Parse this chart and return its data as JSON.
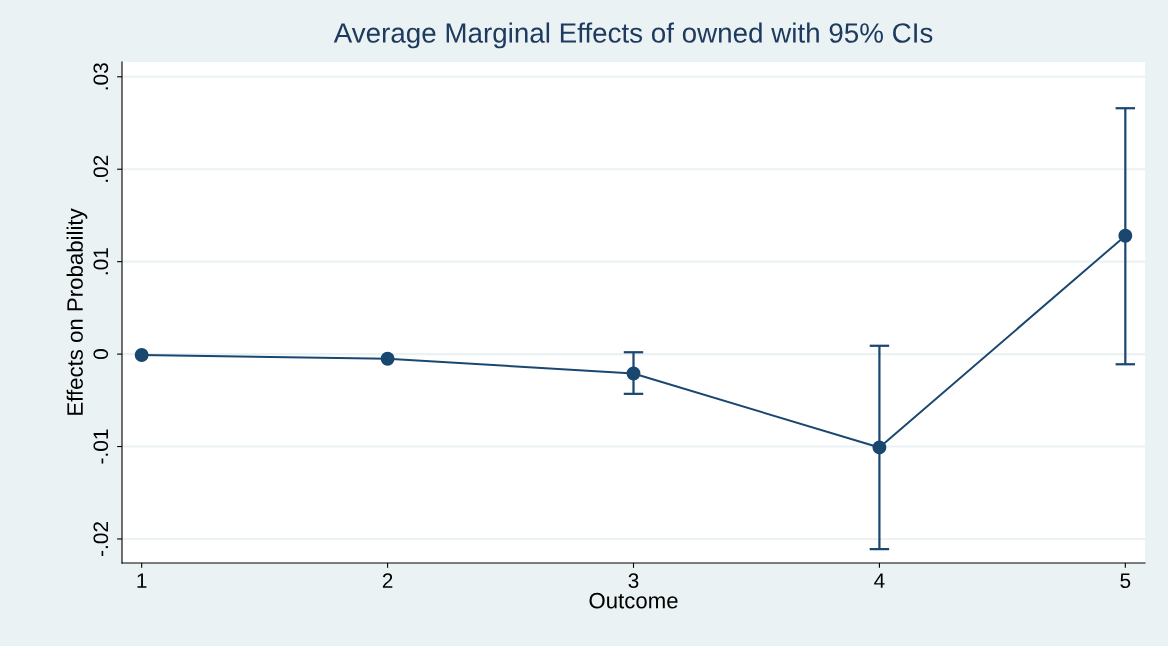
{
  "chart_data": {
    "type": "line",
    "title": "Average Marginal Effects of owned with 95% CIs",
    "xlabel": "Outcome",
    "ylabel": "Effects on Probability",
    "x": [
      1,
      2,
      3,
      4,
      5
    ],
    "series": [
      {
        "color": "#1a476f",
        "values": [
          -0.0001,
          -0.0005,
          -0.0021,
          -0.0101,
          0.0128
        ],
        "errors": [
          null,
          null,
          [
            -0.0043,
            0.0002
          ],
          [
            -0.0211,
            0.0009
          ],
          [
            -0.0011,
            0.0266
          ]
        ]
      }
    ],
    "xlim": [
      0.92,
      5.08
    ],
    "xticks": [
      1,
      2,
      3,
      4,
      5
    ],
    "ylim": [
      -0.0226,
      0.0316
    ],
    "yticks": [
      {
        "value": -0.02,
        "label": "-.02"
      },
      {
        "value": -0.01,
        "label": "-.01"
      },
      {
        "value": 0,
        "label": "0"
      },
      {
        "value": 0.01,
        "label": ".01"
      },
      {
        "value": 0.02,
        "label": ".02"
      },
      {
        "value": 0.03,
        "label": ".03"
      }
    ],
    "grid": "y",
    "marker": "circle",
    "line_style": "solid"
  }
}
